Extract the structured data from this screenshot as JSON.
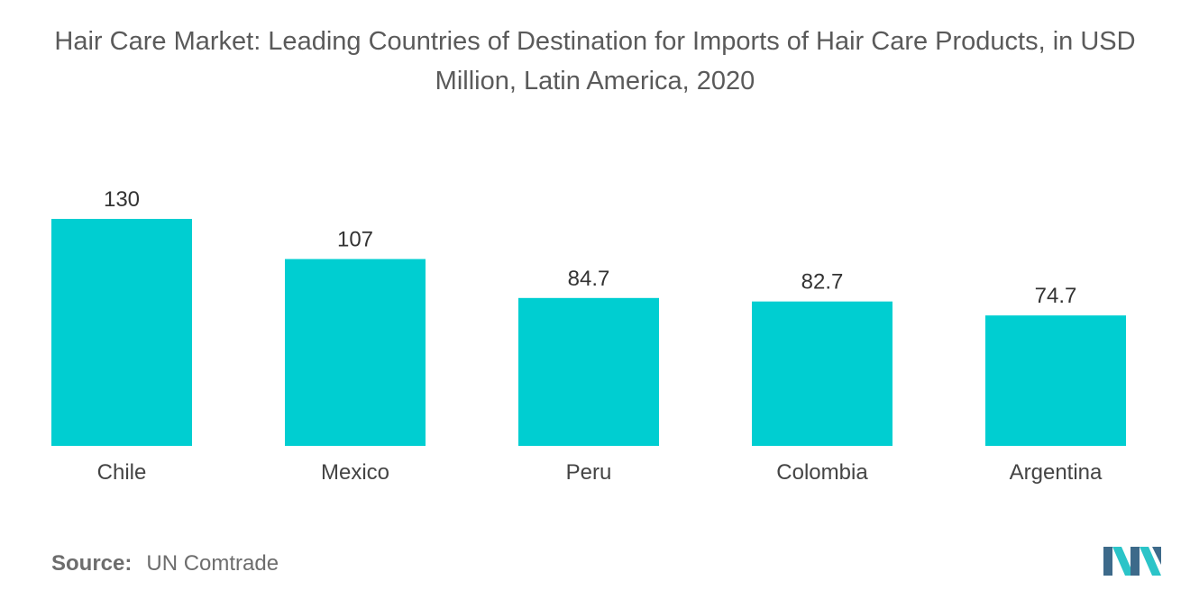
{
  "chart_data": {
    "type": "bar",
    "title": "Hair Care Market: Leading Countries of Destination for Imports of Hair Care Products, in USD Million, Latin America, 2020",
    "categories": [
      "Chile",
      "Mexico",
      "Peru",
      "Colombia",
      "Argentina"
    ],
    "values": [
      130,
      107,
      84.7,
      82.7,
      74.7
    ],
    "value_labels": [
      "130",
      "107",
      "84.7",
      "82.7",
      "74.7"
    ],
    "xlabel": "",
    "ylabel": "",
    "ylim": [
      0,
      130
    ],
    "grid": false,
    "legend": "none",
    "bar_color": "#00ced1"
  },
  "source": {
    "label": "Source:",
    "text": "UN Comtrade"
  },
  "colors": {
    "bar": "#00ced1",
    "title": "#5a5a5a",
    "logo_dark": "#3d6a8a",
    "logo_light": "#2bc4c8"
  }
}
